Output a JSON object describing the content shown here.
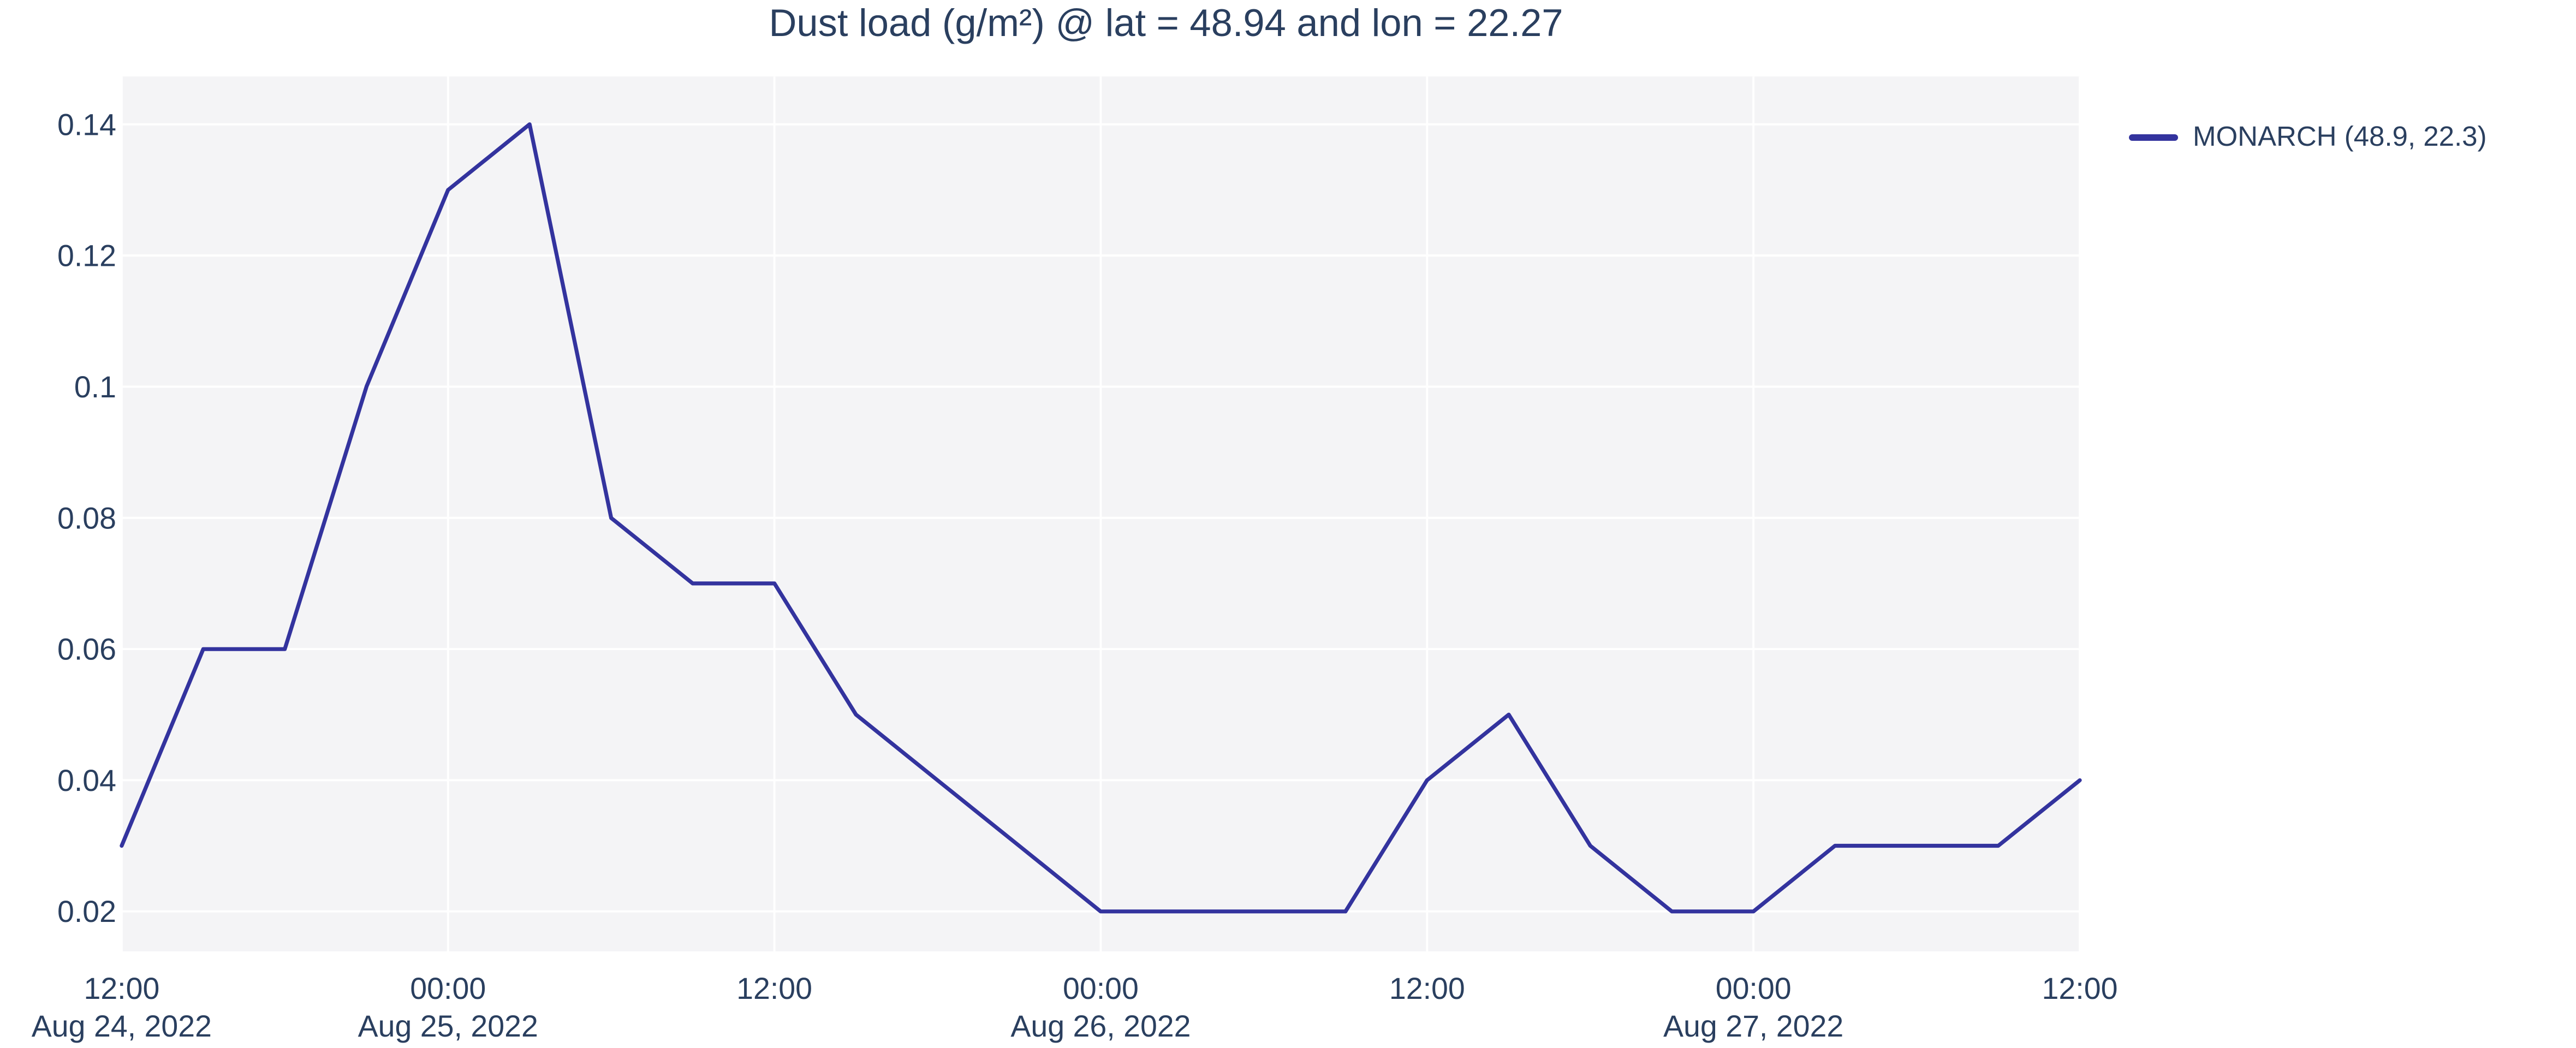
{
  "figure": {
    "kind": "plotly-line-chart"
  },
  "chart_data": {
    "type": "line",
    "title": "Dust load (g/m²) @ lat = 48.94 and lon = 22.27",
    "xlabel": "",
    "ylabel": "",
    "grid": true,
    "legend_position": "top-right-outside",
    "x_unit": "hours since 2022-08-24 12:00",
    "x_range_hours": [
      0,
      72
    ],
    "y_range": [
      0.0139,
      0.1473
    ],
    "series": [
      {
        "name": "MONARCH (48.9, 22.3)",
        "color": "#33339E",
        "x_hours": [
          0,
          3,
          6,
          9,
          12,
          15,
          18,
          21,
          24,
          27,
          30,
          33,
          36,
          39,
          42,
          45,
          48,
          51,
          54,
          57,
          60,
          63,
          66,
          69,
          72
        ],
        "timestamps": [
          "2022-08-24 12:00",
          "2022-08-24 15:00",
          "2022-08-24 18:00",
          "2022-08-24 21:00",
          "2022-08-25 00:00",
          "2022-08-25 03:00",
          "2022-08-25 06:00",
          "2022-08-25 09:00",
          "2022-08-25 12:00",
          "2022-08-25 15:00",
          "2022-08-25 18:00",
          "2022-08-25 21:00",
          "2022-08-26 00:00",
          "2022-08-26 03:00",
          "2022-08-26 06:00",
          "2022-08-26 09:00",
          "2022-08-26 12:00",
          "2022-08-26 15:00",
          "2022-08-26 18:00",
          "2022-08-26 21:00",
          "2022-08-27 00:00",
          "2022-08-27 03:00",
          "2022-08-27 06:00",
          "2022-08-27 09:00",
          "2022-08-27 12:00"
        ],
        "values": [
          0.03,
          0.06,
          0.06,
          0.1,
          0.13,
          0.14,
          0.08,
          0.07,
          0.07,
          0.05,
          0.04,
          0.03,
          0.02,
          0.02,
          0.02,
          0.02,
          0.04,
          0.05,
          0.03,
          0.02,
          0.02,
          0.03,
          0.03,
          0.03,
          0.04
        ]
      }
    ],
    "y_ticks": {
      "values": [
        0.02,
        0.04,
        0.06,
        0.08,
        0.1,
        0.12,
        0.14
      ],
      "labels": [
        "0.02",
        "0.04",
        "0.06",
        "0.08",
        "0.1",
        "0.12",
        "0.14"
      ]
    },
    "x_ticks": [
      {
        "hours": 0,
        "time": "12:00",
        "date": "Aug 24, 2022"
      },
      {
        "hours": 12,
        "time": "00:00",
        "date": "Aug 25, 2022"
      },
      {
        "hours": 24,
        "time": "12:00",
        "date": ""
      },
      {
        "hours": 36,
        "time": "00:00",
        "date": "Aug 26, 2022"
      },
      {
        "hours": 48,
        "time": "12:00",
        "date": ""
      },
      {
        "hours": 60,
        "time": "00:00",
        "date": "Aug 27, 2022"
      },
      {
        "hours": 72,
        "time": "12:00",
        "date": ""
      }
    ],
    "colors": {
      "paper_bg": "#FFFFFF",
      "plot_bg": "#F4F4F6",
      "grid": "#FFFFFF",
      "text": "#2A3F5F",
      "line": "#33339E"
    }
  }
}
